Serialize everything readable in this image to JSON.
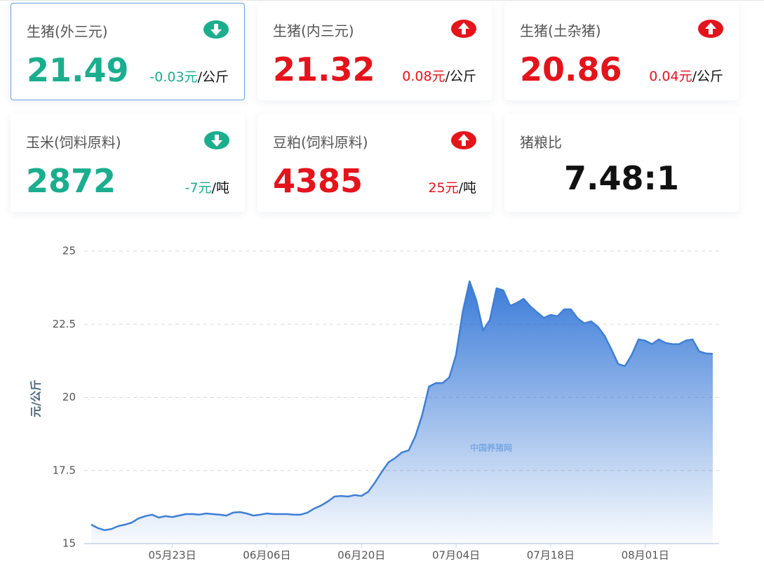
{
  "cards": [
    {
      "label": "生猪(外三元)",
      "value": "21.49",
      "change": "-0.03元",
      "unit": "/公斤",
      "trend": "down",
      "color": "#1aae8e"
    },
    {
      "label": "生猪(内三元)",
      "value": "21.32",
      "change": "0.08元",
      "unit": "/公斤",
      "trend": "up",
      "color": "#e5131b"
    },
    {
      "label": "生猪(土杂猪)",
      "value": "20.86",
      "change": "0.04元",
      "unit": "/公斤",
      "trend": "up",
      "color": "#e5131b"
    },
    {
      "label": "玉米(饲料原料)",
      "value": "2872",
      "change": "-7元",
      "unit": "/吨",
      "trend": "down",
      "color": "#1aae8e"
    },
    {
      "label": "豆粕(饲料原料)",
      "value": "4385",
      "change": "25元",
      "unit": "/吨",
      "trend": "up",
      "color": "#e5131b"
    },
    {
      "label": "猪粮比",
      "value": "7.48:1",
      "color": "#111111"
    }
  ],
  "chart_data": {
    "type": "area",
    "y_label": "元/公斤",
    "annotation": "中国养猪网",
    "color": "#3f7fd6",
    "grid": true,
    "categories": [
      null,
      null,
      null,
      null,
      null,
      null,
      null,
      null,
      null,
      null,
      null,
      null,
      "05月23日",
      null,
      null,
      null,
      null,
      null,
      null,
      null,
      null,
      null,
      null,
      null,
      null,
      null,
      "06月06日",
      null,
      null,
      null,
      null,
      null,
      null,
      null,
      null,
      null,
      null,
      null,
      null,
      null,
      "06月20日",
      null,
      null,
      null,
      null,
      null,
      null,
      null,
      null,
      null,
      null,
      null,
      null,
      null,
      "07月04日",
      null,
      null,
      null,
      null,
      null,
      null,
      null,
      null,
      null,
      null,
      null,
      null,
      null,
      "07月18日",
      null,
      null,
      null,
      null,
      null,
      null,
      null,
      null,
      null,
      null,
      null,
      null,
      null,
      "08月01日",
      null,
      null,
      null,
      null,
      null,
      null,
      null,
      null,
      null,
      null
    ],
    "values": [
      15.65,
      15.53,
      15.46,
      15.5,
      15.6,
      15.65,
      15.72,
      15.86,
      15.94,
      15.99,
      15.89,
      15.94,
      15.91,
      15.96,
      16.01,
      16.01,
      15.99,
      16.03,
      16.01,
      15.99,
      15.96,
      16.06,
      16.08,
      16.03,
      15.96,
      15.99,
      16.03,
      16.01,
      16.01,
      16.01,
      15.99,
      15.99,
      16.06,
      16.2,
      16.3,
      16.44,
      16.61,
      16.63,
      16.61,
      16.66,
      16.63,
      16.77,
      17.09,
      17.45,
      17.78,
      17.93,
      18.12,
      18.19,
      18.69,
      19.41,
      20.37,
      20.49,
      20.49,
      20.68,
      21.45,
      22.94,
      23.97,
      23.32,
      22.29,
      22.65,
      23.73,
      23.66,
      23.13,
      23.23,
      23.37,
      23.11,
      22.91,
      22.72,
      22.82,
      22.77,
      23.01,
      23.01,
      22.7,
      22.53,
      22.6,
      22.41,
      22.1,
      21.64,
      21.14,
      21.07,
      21.45,
      21.98,
      21.94,
      21.82,
      21.98,
      21.86,
      21.82,
      21.82,
      21.94,
      21.98,
      21.57,
      21.5,
      21.49
    ],
    "ylim": [
      15,
      25
    ],
    "yticks": [
      15,
      17.5,
      20,
      22.5,
      25
    ]
  }
}
